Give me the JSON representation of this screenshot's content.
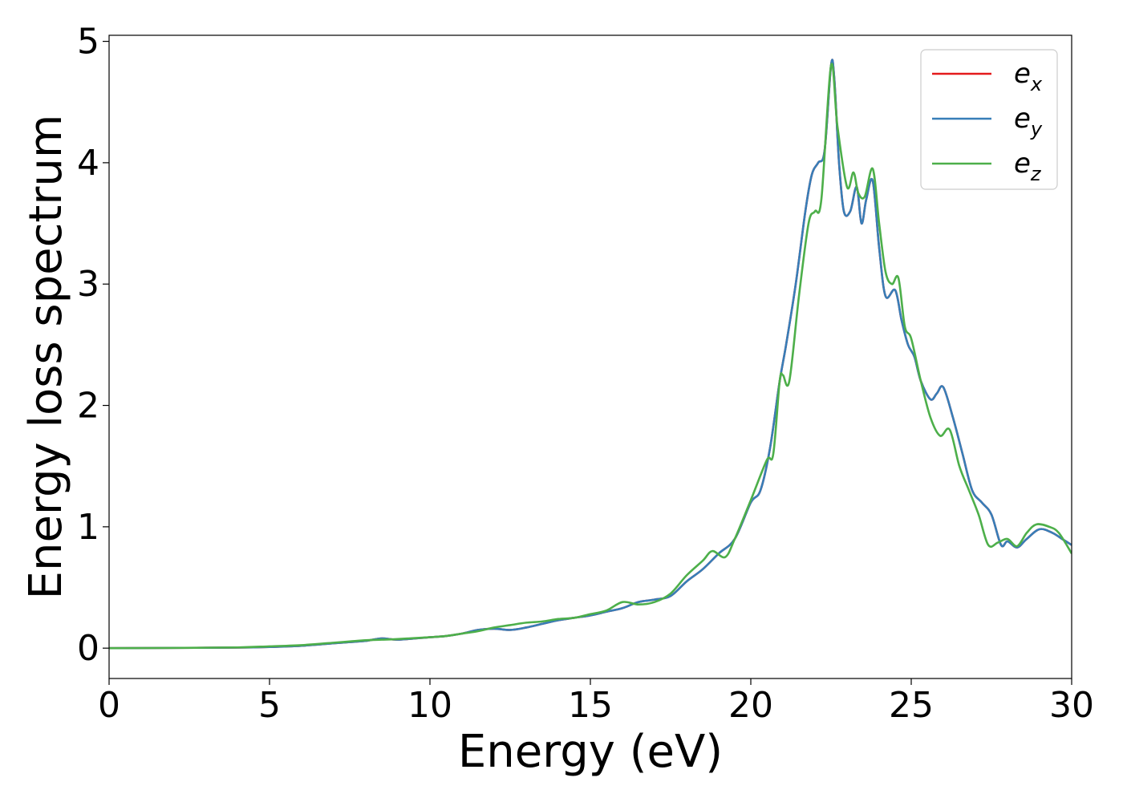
{
  "chart_data": {
    "type": "line",
    "title": "",
    "xlabel": "Energy (eV)",
    "ylabel": "Energy loss spectrum",
    "xlim": [
      0,
      30
    ],
    "ylim": [
      -0.25,
      5.05
    ],
    "xticks": [
      0,
      5,
      10,
      15,
      20,
      25,
      30
    ],
    "yticks": [
      0,
      1,
      2,
      3,
      4,
      5
    ],
    "xtick_labels": [
      "0",
      "5",
      "10",
      "15",
      "20",
      "25",
      "30"
    ],
    "ytick_labels": [
      "0",
      "1",
      "2",
      "3",
      "4",
      "5"
    ],
    "grid": false,
    "legend": {
      "placement": "top-right",
      "entries": [
        {
          "base": "e",
          "sub": "x",
          "color": "#e41a1c"
        },
        {
          "base": "e",
          "sub": "y",
          "color": "#377eb8"
        },
        {
          "base": "e",
          "sub": "z",
          "color": "#4daf4a"
        }
      ]
    },
    "series": [
      {
        "name": "e_x",
        "color": "#e41a1c",
        "x": [
          0,
          2,
          4,
          5,
          6,
          7,
          7.5,
          8,
          8.5,
          9,
          10,
          10.5,
          11,
          11.5,
          12,
          12.5,
          13,
          13.5,
          14,
          14.5,
          15,
          15.5,
          16,
          16.5,
          17,
          17.5,
          18,
          18.5,
          19,
          19.5,
          20,
          20.3,
          20.6,
          20.9,
          21.1,
          21.4,
          21.7,
          21.9,
          22.1,
          22.3,
          22.5,
          22.6,
          22.75,
          22.9,
          23.1,
          23.3,
          23.45,
          23.6,
          23.8,
          24,
          24.2,
          24.5,
          24.7,
          24.9,
          25.1,
          25.3,
          25.6,
          25.8,
          26.0,
          26.3,
          26.6,
          26.9,
          27.2,
          27.5,
          27.8,
          28.0,
          28.3,
          28.6,
          29.0,
          29.4,
          29.7,
          30
        ],
        "y": [
          0,
          0.002,
          0.005,
          0.01,
          0.02,
          0.04,
          0.05,
          0.06,
          0.08,
          0.07,
          0.09,
          0.1,
          0.12,
          0.15,
          0.16,
          0.15,
          0.17,
          0.2,
          0.23,
          0.25,
          0.27,
          0.3,
          0.33,
          0.38,
          0.4,
          0.43,
          0.55,
          0.65,
          0.78,
          0.9,
          1.2,
          1.3,
          1.65,
          2.2,
          2.5,
          3.0,
          3.6,
          3.9,
          4.0,
          4.1,
          4.8,
          4.7,
          4.0,
          3.6,
          3.6,
          3.8,
          3.5,
          3.7,
          3.85,
          3.3,
          2.9,
          2.95,
          2.7,
          2.5,
          2.4,
          2.2,
          2.05,
          2.1,
          2.15,
          1.9,
          1.6,
          1.3,
          1.2,
          1.1,
          0.85,
          0.88,
          0.83,
          0.9,
          0.98,
          0.95,
          0.9,
          0.85
        ]
      },
      {
        "name": "e_y",
        "color": "#377eb8",
        "x": [
          0,
          2,
          4,
          5,
          6,
          7,
          7.5,
          8,
          8.5,
          9,
          10,
          10.5,
          11,
          11.5,
          12,
          12.5,
          13,
          13.5,
          14,
          14.5,
          15,
          15.5,
          16,
          16.5,
          17,
          17.5,
          18,
          18.5,
          19,
          19.5,
          20,
          20.3,
          20.6,
          20.9,
          21.1,
          21.4,
          21.7,
          21.9,
          22.1,
          22.3,
          22.5,
          22.6,
          22.75,
          22.9,
          23.1,
          23.3,
          23.45,
          23.6,
          23.8,
          24,
          24.2,
          24.5,
          24.7,
          24.9,
          25.1,
          25.3,
          25.6,
          25.8,
          26.0,
          26.3,
          26.6,
          26.9,
          27.2,
          27.5,
          27.8,
          28.0,
          28.3,
          28.6,
          29.0,
          29.4,
          29.7,
          30
        ],
        "y": [
          0,
          0.002,
          0.005,
          0.01,
          0.02,
          0.04,
          0.05,
          0.06,
          0.08,
          0.07,
          0.09,
          0.1,
          0.12,
          0.15,
          0.16,
          0.15,
          0.17,
          0.2,
          0.23,
          0.25,
          0.27,
          0.3,
          0.33,
          0.38,
          0.4,
          0.43,
          0.55,
          0.65,
          0.78,
          0.9,
          1.2,
          1.3,
          1.65,
          2.2,
          2.5,
          3.0,
          3.6,
          3.9,
          4.0,
          4.1,
          4.8,
          4.7,
          4.0,
          3.6,
          3.6,
          3.8,
          3.5,
          3.7,
          3.85,
          3.3,
          2.9,
          2.95,
          2.7,
          2.5,
          2.4,
          2.2,
          2.05,
          2.1,
          2.15,
          1.9,
          1.6,
          1.3,
          1.2,
          1.1,
          0.85,
          0.88,
          0.83,
          0.9,
          0.98,
          0.95,
          0.9,
          0.85
        ]
      },
      {
        "name": "e_z",
        "color": "#4daf4a",
        "x": [
          0,
          2,
          4,
          5,
          6,
          7,
          7.5,
          8,
          8.5,
          9,
          10,
          10.5,
          11,
          11.5,
          12,
          12.5,
          13,
          13.5,
          14,
          14.5,
          15,
          15.5,
          16,
          16.5,
          17,
          17.5,
          18,
          18.5,
          18.8,
          19.2,
          19.5,
          20,
          20.5,
          20.7,
          20.9,
          21.0,
          21.2,
          21.5,
          21.8,
          22.0,
          22.2,
          22.5,
          22.7,
          23.0,
          23.2,
          23.35,
          23.55,
          23.8,
          24.0,
          24.2,
          24.4,
          24.6,
          24.8,
          25.0,
          25.3,
          25.6,
          25.9,
          26.2,
          26.5,
          26.8,
          27.1,
          27.4,
          27.7,
          28.0,
          28.3,
          28.6,
          28.9,
          29.3,
          29.6,
          30
        ],
        "y": [
          0,
          0.002,
          0.006,
          0.015,
          0.025,
          0.045,
          0.055,
          0.065,
          0.07,
          0.075,
          0.09,
          0.1,
          0.12,
          0.14,
          0.17,
          0.19,
          0.21,
          0.22,
          0.24,
          0.25,
          0.28,
          0.31,
          0.38,
          0.36,
          0.38,
          0.45,
          0.6,
          0.72,
          0.8,
          0.75,
          0.9,
          1.22,
          1.55,
          1.6,
          2.2,
          2.25,
          2.2,
          2.9,
          3.5,
          3.6,
          3.7,
          4.8,
          4.3,
          3.8,
          3.92,
          3.75,
          3.72,
          3.95,
          3.5,
          3.1,
          3.0,
          3.05,
          2.65,
          2.55,
          2.2,
          1.9,
          1.75,
          1.8,
          1.5,
          1.3,
          1.1,
          0.85,
          0.87,
          0.9,
          0.84,
          0.95,
          1.02,
          1.0,
          0.95,
          0.78
        ]
      }
    ]
  }
}
